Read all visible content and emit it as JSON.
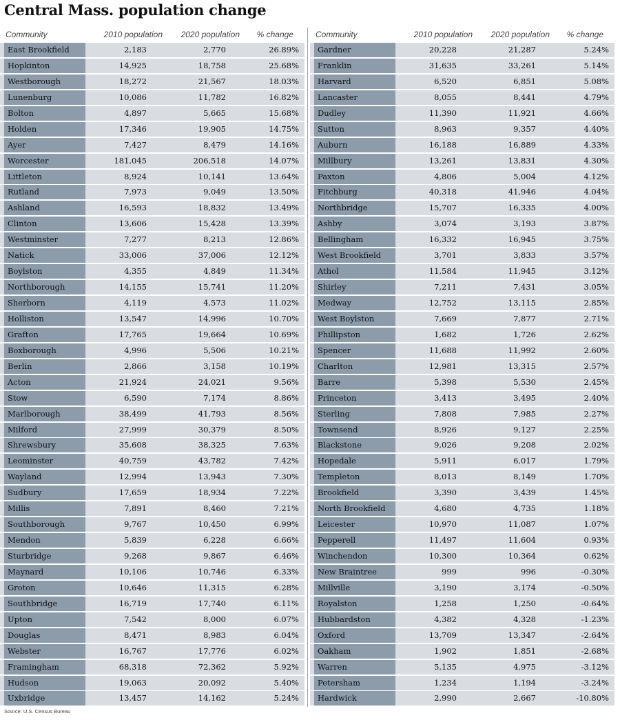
{
  "title": "Central Mass. population change",
  "source": "Source: U.S. Census Bureau",
  "colors": {
    "name_cell_bg": "#8c9cab",
    "row_bg": "#d9dde1"
  },
  "columns": {
    "community": "Community",
    "pop2010": "2010 population",
    "pop2020": "2020 population",
    "change": "% change"
  },
  "left_table": [
    {
      "community": "East Brookfield",
      "pop2010": "2,183",
      "pop2020": "2,770",
      "change": "26.89%"
    },
    {
      "community": "Hopkinton",
      "pop2010": "14,925",
      "pop2020": "18,758",
      "change": "25.68%"
    },
    {
      "community": "Westborough",
      "pop2010": "18,272",
      "pop2020": "21,567",
      "change": "18.03%"
    },
    {
      "community": "Lunenburg",
      "pop2010": "10,086",
      "pop2020": "11,782",
      "change": "16.82%"
    },
    {
      "community": "Bolton",
      "pop2010": "4,897",
      "pop2020": "5,665",
      "change": "15.68%"
    },
    {
      "community": "Holden",
      "pop2010": "17,346",
      "pop2020": "19,905",
      "change": "14.75%"
    },
    {
      "community": "Ayer",
      "pop2010": "7,427",
      "pop2020": "8,479",
      "change": "14.16%"
    },
    {
      "community": "Worcester",
      "pop2010": "181,045",
      "pop2020": "206,518",
      "change": "14.07%"
    },
    {
      "community": "Littleton",
      "pop2010": "8,924",
      "pop2020": "10,141",
      "change": "13.64%"
    },
    {
      "community": "Rutland",
      "pop2010": "7,973",
      "pop2020": "9,049",
      "change": "13.50%"
    },
    {
      "community": "Ashland",
      "pop2010": "16,593",
      "pop2020": "18,832",
      "change": "13.49%"
    },
    {
      "community": "Clinton",
      "pop2010": "13,606",
      "pop2020": "15,428",
      "change": "13.39%"
    },
    {
      "community": "Westminster",
      "pop2010": "7,277",
      "pop2020": "8,213",
      "change": "12.86%"
    },
    {
      "community": "Natick",
      "pop2010": "33,006",
      "pop2020": "37,006",
      "change": "12.12%"
    },
    {
      "community": "Boylston",
      "pop2010": "4,355",
      "pop2020": "4,849",
      "change": "11.34%"
    },
    {
      "community": "Northborough",
      "pop2010": "14,155",
      "pop2020": "15,741",
      "change": "11.20%"
    },
    {
      "community": "Sherborn",
      "pop2010": "4,119",
      "pop2020": "4,573",
      "change": "11.02%"
    },
    {
      "community": "Holliston",
      "pop2010": "13,547",
      "pop2020": "14,996",
      "change": "10.70%"
    },
    {
      "community": "Grafton",
      "pop2010": "17,765",
      "pop2020": "19,664",
      "change": "10.69%"
    },
    {
      "community": "Boxborough",
      "pop2010": "4,996",
      "pop2020": "5,506",
      "change": "10.21%"
    },
    {
      "community": "Berlin",
      "pop2010": "2,866",
      "pop2020": "3,158",
      "change": "10.19%"
    },
    {
      "community": "Acton",
      "pop2010": "21,924",
      "pop2020": "24,021",
      "change": "9.56%"
    },
    {
      "community": "Stow",
      "pop2010": "6,590",
      "pop2020": "7,174",
      "change": "8.86%"
    },
    {
      "community": "Marlborough",
      "pop2010": "38,499",
      "pop2020": "41,793",
      "change": "8.56%"
    },
    {
      "community": "Milford",
      "pop2010": "27,999",
      "pop2020": "30,379",
      "change": "8.50%"
    },
    {
      "community": "Shrewsbury",
      "pop2010": "35,608",
      "pop2020": "38,325",
      "change": "7.63%"
    },
    {
      "community": "Leominster",
      "pop2010": "40,759",
      "pop2020": "43,782",
      "change": "7.42%"
    },
    {
      "community": "Wayland",
      "pop2010": "12,994",
      "pop2020": "13,943",
      "change": "7.30%"
    },
    {
      "community": "Sudbury",
      "pop2010": "17,659",
      "pop2020": "18,934",
      "change": "7.22%"
    },
    {
      "community": "Millis",
      "pop2010": "7,891",
      "pop2020": "8,460",
      "change": "7.21%"
    },
    {
      "community": "Southborough",
      "pop2010": "9,767",
      "pop2020": "10,450",
      "change": "6.99%"
    },
    {
      "community": "Mendon",
      "pop2010": "5,839",
      "pop2020": "6,228",
      "change": "6.66%"
    },
    {
      "community": "Sturbridge",
      "pop2010": "9,268",
      "pop2020": "9,867",
      "change": "6.46%"
    },
    {
      "community": "Maynard",
      "pop2010": "10,106",
      "pop2020": "10,746",
      "change": "6.33%"
    },
    {
      "community": "Groton",
      "pop2010": "10,646",
      "pop2020": "11,315",
      "change": "6.28%"
    },
    {
      "community": "Southbridge",
      "pop2010": "16,719",
      "pop2020": "17,740",
      "change": "6.11%"
    },
    {
      "community": "Upton",
      "pop2010": "7,542",
      "pop2020": "8,000",
      "change": "6.07%"
    },
    {
      "community": "Douglas",
      "pop2010": "8,471",
      "pop2020": "8,983",
      "change": "6.04%"
    },
    {
      "community": "Webster",
      "pop2010": "16,767",
      "pop2020": "17,776",
      "change": "6.02%"
    },
    {
      "community": "Framingham",
      "pop2010": "68,318",
      "pop2020": "72,362",
      "change": "5.92%"
    },
    {
      "community": "Hudson",
      "pop2010": "19,063",
      "pop2020": "20,092",
      "change": "5.40%"
    },
    {
      "community": "Uxbridge",
      "pop2010": "13,457",
      "pop2020": "14,162",
      "change": "5.24%"
    }
  ],
  "right_table": [
    {
      "community": "Gardner",
      "pop2010": "20,228",
      "pop2020": "21,287",
      "change": "5.24%"
    },
    {
      "community": "Franklin",
      "pop2010": "31,635",
      "pop2020": "33,261",
      "change": "5.14%"
    },
    {
      "community": "Harvard",
      "pop2010": "6,520",
      "pop2020": "6,851",
      "change": "5.08%"
    },
    {
      "community": "Lancaster",
      "pop2010": "8,055",
      "pop2020": "8,441",
      "change": "4.79%"
    },
    {
      "community": "Dudley",
      "pop2010": "11,390",
      "pop2020": "11,921",
      "change": "4.66%"
    },
    {
      "community": "Sutton",
      "pop2010": "8,963",
      "pop2020": "9,357",
      "change": "4.40%"
    },
    {
      "community": "Auburn",
      "pop2010": "16,188",
      "pop2020": "16,889",
      "change": "4.33%"
    },
    {
      "community": "Millbury",
      "pop2010": "13,261",
      "pop2020": "13,831",
      "change": "4.30%"
    },
    {
      "community": "Paxton",
      "pop2010": "4,806",
      "pop2020": "5,004",
      "change": "4.12%"
    },
    {
      "community": "Fitchburg",
      "pop2010": "40,318",
      "pop2020": "41,946",
      "change": "4.04%"
    },
    {
      "community": "Northbridge",
      "pop2010": "15,707",
      "pop2020": "16,335",
      "change": "4.00%"
    },
    {
      "community": "Ashby",
      "pop2010": "3,074",
      "pop2020": "3,193",
      "change": "3.87%"
    },
    {
      "community": "Bellingham",
      "pop2010": "16,332",
      "pop2020": "16,945",
      "change": "3.75%"
    },
    {
      "community": "West Brookfield",
      "pop2010": "3,701",
      "pop2020": "3,833",
      "change": "3.57%"
    },
    {
      "community": "Athol",
      "pop2010": "11,584",
      "pop2020": "11,945",
      "change": "3.12%"
    },
    {
      "community": "Shirley",
      "pop2010": "7,211",
      "pop2020": "7,431",
      "change": "3.05%"
    },
    {
      "community": "Medway",
      "pop2010": "12,752",
      "pop2020": "13,115",
      "change": "2.85%"
    },
    {
      "community": "West Boylston",
      "pop2010": "7,669",
      "pop2020": "7,877",
      "change": "2.71%"
    },
    {
      "community": "Phillipston",
      "pop2010": "1,682",
      "pop2020": "1,726",
      "change": "2.62%"
    },
    {
      "community": "Spencer",
      "pop2010": "11,688",
      "pop2020": "11,992",
      "change": "2.60%"
    },
    {
      "community": "Charlton",
      "pop2010": "12,981",
      "pop2020": "13,315",
      "change": "2.57%"
    },
    {
      "community": "Barre",
      "pop2010": "5,398",
      "pop2020": "5,530",
      "change": "2.45%"
    },
    {
      "community": "Princeton",
      "pop2010": "3,413",
      "pop2020": "3,495",
      "change": "2.40%"
    },
    {
      "community": "Sterling",
      "pop2010": "7,808",
      "pop2020": "7,985",
      "change": "2.27%"
    },
    {
      "community": "Townsend",
      "pop2010": "8,926",
      "pop2020": "9,127",
      "change": "2.25%"
    },
    {
      "community": "Blackstone",
      "pop2010": "9,026",
      "pop2020": "9,208",
      "change": "2.02%"
    },
    {
      "community": "Hopedale",
      "pop2010": "5,911",
      "pop2020": "6,017",
      "change": "1.79%"
    },
    {
      "community": "Templeton",
      "pop2010": "8,013",
      "pop2020": "8,149",
      "change": "1.70%"
    },
    {
      "community": "Brookfield",
      "pop2010": "3,390",
      "pop2020": "3,439",
      "change": "1.45%"
    },
    {
      "community": "North Brookfield",
      "pop2010": "4,680",
      "pop2020": "4,735",
      "change": "1.18%"
    },
    {
      "community": "Leicester",
      "pop2010": "10,970",
      "pop2020": "11,087",
      "change": "1.07%"
    },
    {
      "community": "Pepperell",
      "pop2010": "11,497",
      "pop2020": "11,604",
      "change": "0.93%"
    },
    {
      "community": "Winchendon",
      "pop2010": "10,300",
      "pop2020": "10,364",
      "change": "0.62%"
    },
    {
      "community": "New Braintree",
      "pop2010": "999",
      "pop2020": "996",
      "change": "-0.30%"
    },
    {
      "community": "Millville",
      "pop2010": "3,190",
      "pop2020": "3,174",
      "change": "-0.50%"
    },
    {
      "community": "Royalston",
      "pop2010": "1,258",
      "pop2020": "1,250",
      "change": "-0.64%"
    },
    {
      "community": "Hubbardston",
      "pop2010": "4,382",
      "pop2020": "4,328",
      "change": "-1.23%"
    },
    {
      "community": "Oxford",
      "pop2010": "13,709",
      "pop2020": "13,347",
      "change": "-2.64%"
    },
    {
      "community": "Oakham",
      "pop2010": "1,902",
      "pop2020": "1,851",
      "change": "-2.68%"
    },
    {
      "community": "Warren",
      "pop2010": "5,135",
      "pop2020": "4,975",
      "change": "-3.12%"
    },
    {
      "community": "Petersham",
      "pop2010": "1,234",
      "pop2020": "1,194",
      "change": "-3.24%"
    },
    {
      "community": "Hardwick",
      "pop2010": "2,990",
      "pop2020": "2,667",
      "change": "-10.80%"
    }
  ]
}
